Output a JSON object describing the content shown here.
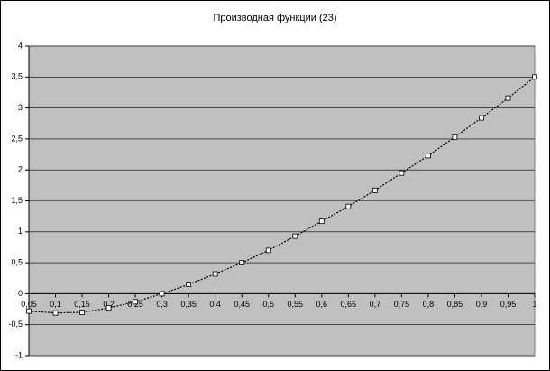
{
  "chart_data": {
    "type": "line",
    "title": "Производная функции (23)",
    "x": [
      0.05,
      0.1,
      0.15,
      0.2,
      0.25,
      0.3,
      0.35,
      0.4,
      0.45,
      0.5,
      0.55,
      0.6,
      0.65,
      0.7,
      0.75,
      0.8,
      0.85,
      0.9,
      0.95,
      1
    ],
    "series": [
      {
        "color": "#000000",
        "values": [
          -0.28,
          -0.31,
          -0.3,
          -0.23,
          -0.13,
          0,
          0.15,
          0.32,
          0.5,
          0.7,
          0.93,
          1.17,
          1.41,
          1.67,
          1.95,
          2.23,
          2.53,
          2.84,
          3.16,
          3.5
        ]
      }
    ],
    "xlim": [
      0.05,
      1
    ],
    "xticks": [
      {
        "value": 0.05,
        "label": "0,05"
      },
      {
        "value": 0.1,
        "label": "0,1"
      },
      {
        "value": 0.15,
        "label": "0,15"
      },
      {
        "value": 0.2,
        "label": "0,2"
      },
      {
        "value": 0.25,
        "label": "0,25"
      },
      {
        "value": 0.3,
        "label": "0,3"
      },
      {
        "value": 0.35,
        "label": "0,35"
      },
      {
        "value": 0.4,
        "label": "0,4"
      },
      {
        "value": 0.45,
        "label": "0,45"
      },
      {
        "value": 0.5,
        "label": "0,5"
      },
      {
        "value": 0.55,
        "label": "0,55"
      },
      {
        "value": 0.6,
        "label": "0,6"
      },
      {
        "value": 0.65,
        "label": "0,65"
      },
      {
        "value": 0.7,
        "label": "0,7"
      },
      {
        "value": 0.75,
        "label": "0,75"
      },
      {
        "value": 0.8,
        "label": "0,8"
      },
      {
        "value": 0.85,
        "label": "0,85"
      },
      {
        "value": 0.9,
        "label": "0,9"
      },
      {
        "value": 0.95,
        "label": "0,95"
      },
      1
    ],
    "ylim": [
      -1,
      4
    ],
    "yticks": [
      -1,
      {
        "value": -0.5,
        "label": "-0,5"
      },
      0,
      {
        "value": 0.5,
        "label": "0,5"
      },
      1,
      {
        "value": 1.5,
        "label": "1,5"
      },
      2,
      {
        "value": 2.5,
        "label": "2,5"
      },
      3,
      {
        "value": 3.5,
        "label": "3,5"
      },
      4
    ],
    "grid": true,
    "plot_background": "#c0c0c0"
  }
}
